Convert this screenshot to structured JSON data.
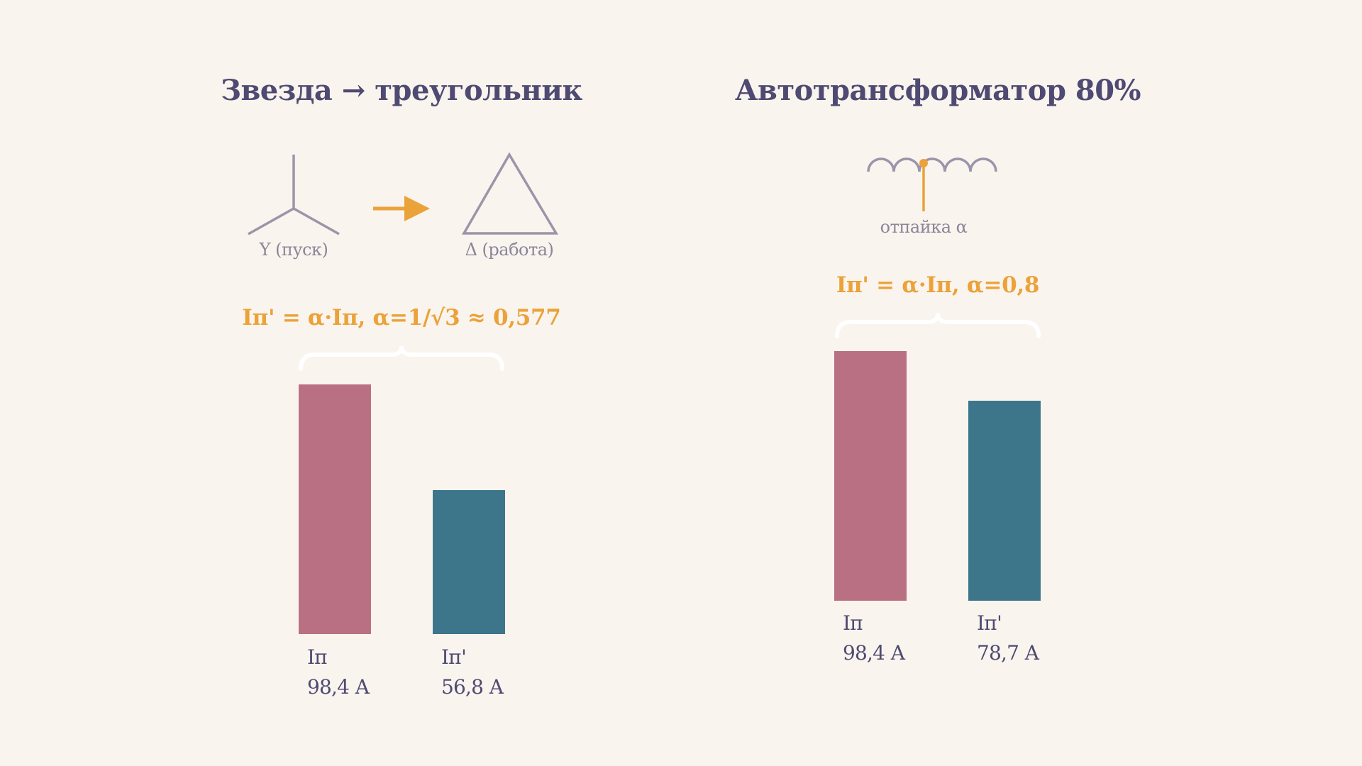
{
  "colors": {
    "background": "#faf4ee",
    "text": "#4f4a72",
    "muted": "#8a8599",
    "accent": "#eba238",
    "before": "#ba7083",
    "after": "#3d768b",
    "brace": "#ffffff"
  },
  "panels": [
    {
      "title": "Звезда → треугольник",
      "diagram": {
        "from_label": "Y (пуск)",
        "to_label": "Δ (работа)",
        "from_icon": "star-wye-icon",
        "to_icon": "delta-triangle-icon",
        "arrow_icon": "arrow-right-icon"
      },
      "formula": "Iп' = α·Iп, α=1/√3 ≈ 0,577"
    },
    {
      "title": "Автотрансформатор 80%",
      "diagram": {
        "tap_label": "отпайка α",
        "icon": "autotransformer-coil-icon"
      },
      "formula": "Iп' = α·Iп, α=0,8"
    }
  ],
  "chart_data": [
    {
      "type": "bar",
      "title": "Звезда → треугольник",
      "categories": [
        "Iп",
        "Iп'"
      ],
      "values": [
        98.4,
        56.8
      ],
      "value_labels": [
        "98,4 А",
        "56,8 А"
      ],
      "unit": "А",
      "colors": [
        "#ba7083",
        "#3d768b"
      ],
      "grid": false,
      "legend": "none"
    },
    {
      "type": "bar",
      "title": "Автотрансформатор 80%",
      "categories": [
        "Iп",
        "Iп'"
      ],
      "values": [
        98.4,
        78.7
      ],
      "value_labels": [
        "98,4 А",
        "78,7 А"
      ],
      "unit": "А",
      "colors": [
        "#ba7083",
        "#3d768b"
      ],
      "grid": false,
      "legend": "none"
    }
  ]
}
